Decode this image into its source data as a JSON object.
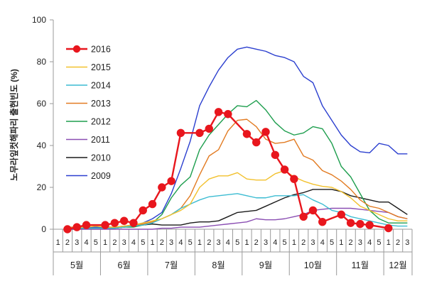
{
  "chart_data": {
    "type": "line",
    "title": "",
    "ylabel": "노무라잎컷해파리 출현빈도 (%)",
    "xlabel": "",
    "ylim": [
      0,
      100
    ],
    "yticks": [
      0,
      20,
      40,
      60,
      80,
      100
    ],
    "grid": false,
    "legend_position": "top-left",
    "week_labels": [
      "1",
      "2",
      "3",
      "4",
      "5",
      "1",
      "2",
      "3",
      "4",
      "5",
      "1",
      "2",
      "3",
      "4",
      "5",
      "1",
      "2",
      "3",
      "4",
      "5",
      "1",
      "2",
      "3",
      "4",
      "5",
      "1",
      "2",
      "3",
      "4",
      "5",
      "1",
      "2",
      "3",
      "4",
      "5",
      "1",
      "2",
      "3"
    ],
    "months": [
      {
        "label": "5월",
        "weeks": 5
      },
      {
        "label": "6월",
        "weeks": 5
      },
      {
        "label": "7월",
        "weeks": 5
      },
      {
        "label": "8월",
        "weeks": 5
      },
      {
        "label": "9월",
        "weeks": 5
      },
      {
        "label": "10월",
        "weeks": 5
      },
      {
        "label": "11월",
        "weeks": 5
      },
      {
        "label": "12월",
        "weeks": 3
      }
    ],
    "series": [
      {
        "name": "2016",
        "color": "#e8161d",
        "marker": "circle",
        "values": [
          null,
          0,
          1,
          2,
          null,
          2,
          3,
          4,
          3,
          9,
          12,
          20,
          23,
          46,
          null,
          46,
          48,
          56,
          55,
          null,
          45.5,
          41.5,
          46.5,
          35.5,
          28.5,
          24,
          6,
          9,
          3.5,
          null,
          7,
          3,
          2.5,
          2,
          null,
          0.5,
          null,
          null
        ]
      },
      {
        "name": "2015",
        "color": "#f2c12e",
        "values": [
          null,
          0.5,
          1,
          1,
          1.5,
          1,
          1,
          1.5,
          2,
          3,
          4,
          5,
          7,
          9,
          12,
          20,
          24,
          25.5,
          25.5,
          27,
          24,
          23.5,
          23.5,
          26.5,
          28,
          25,
          23,
          21.5,
          20.5,
          20,
          18,
          15,
          11,
          9,
          7,
          5,
          4,
          4
        ]
      },
      {
        "name": "2014",
        "color": "#3cbcd2",
        "values": [
          null,
          0.5,
          0.5,
          0.5,
          0.5,
          0.5,
          0.5,
          1,
          1.5,
          2,
          3,
          5,
          7,
          10,
          12,
          14,
          15.5,
          16,
          16.5,
          17,
          16,
          15,
          15,
          16,
          16,
          16,
          16.5,
          14,
          12,
          9,
          8,
          6,
          5,
          4,
          3,
          2,
          1.5,
          1.5
        ]
      },
      {
        "name": "2013",
        "color": "#e27b22",
        "values": [
          null,
          1,
          1,
          1,
          1.5,
          1,
          1,
          1.5,
          2,
          2.5,
          3.5,
          5,
          7,
          10,
          16,
          26,
          35,
          38,
          47,
          52,
          52.5,
          49,
          43,
          41,
          41.5,
          43,
          35,
          33,
          28,
          26,
          23,
          19,
          14,
          11,
          10,
          8,
          6,
          5
        ]
      },
      {
        "name": "2012",
        "color": "#1e9e4e",
        "values": [
          null,
          0.5,
          0.5,
          0.5,
          0.5,
          0.5,
          0.5,
          1,
          1,
          2,
          3,
          7,
          15,
          21,
          25,
          38,
          45,
          50,
          55,
          59,
          58.5,
          61.5,
          57,
          51,
          47,
          45,
          46,
          49,
          48,
          41,
          30,
          25,
          17,
          9,
          5,
          3,
          3,
          3
        ]
      },
      {
        "name": "2011",
        "color": "#8b4fb3",
        "values": [
          null,
          0,
          0,
          0,
          0,
          0,
          0,
          0,
          0,
          0,
          0,
          0.5,
          0.5,
          1,
          1,
          1,
          1.5,
          2,
          2.5,
          3,
          3.5,
          5,
          4.5,
          4.5,
          5,
          6,
          7,
          9,
          9.5,
          10,
          10,
          10,
          9.5,
          9,
          8.5,
          8,
          6,
          5
        ]
      },
      {
        "name": "2010",
        "color": "#1a1a1a",
        "values": [
          null,
          0,
          0,
          0.5,
          0.5,
          0.5,
          0.5,
          1,
          1.5,
          2,
          2.5,
          2,
          2,
          2,
          3,
          3.5,
          3.5,
          4,
          6,
          8,
          8.5,
          9,
          11,
          13,
          15,
          16.5,
          17.5,
          19,
          19,
          19,
          18,
          16,
          15,
          14,
          13,
          13,
          10,
          7
        ]
      },
      {
        "name": "2009",
        "color": "#2b3fcf",
        "values": [
          null,
          0.5,
          1,
          1,
          1,
          1,
          1,
          1.5,
          2,
          3,
          5,
          8,
          17,
          29,
          42,
          59,
          68,
          76,
          82,
          86,
          87,
          86,
          85,
          83,
          82,
          80,
          73,
          70,
          59,
          52,
          45,
          40,
          37,
          36.5,
          41,
          40,
          36,
          36
        ]
      }
    ]
  }
}
